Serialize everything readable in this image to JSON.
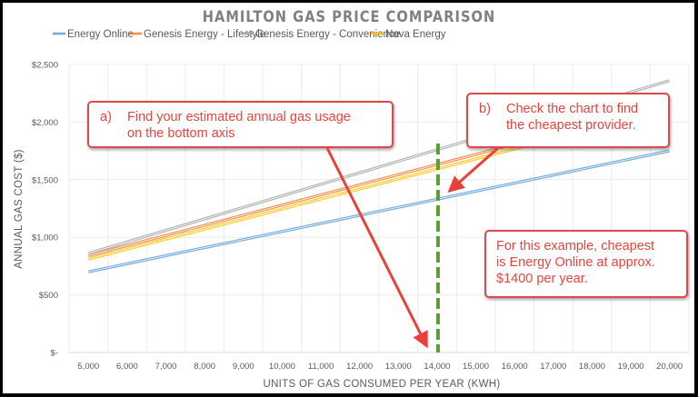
{
  "chart_data": {
    "type": "line",
    "title": "HAMILTON GAS PRICE COMPARISON",
    "xlabel": "UNITS OF GAS CONSUMED PER YEAR (KWH)",
    "ylabel": "ANNUAL GAS COST ($)",
    "categories": [
      "5,000",
      "6,000",
      "7,000",
      "8,000",
      "9,000",
      "10,000",
      "11,000",
      "12,000",
      "13,000",
      "14,000",
      "15,000",
      "16,000",
      "17,000",
      "18,000",
      "19,000",
      "20,000"
    ],
    "x": [
      5000,
      6000,
      7000,
      8000,
      9000,
      10000,
      11000,
      12000,
      13000,
      14000,
      15000,
      16000,
      17000,
      18000,
      19000,
      20000
    ],
    "ylim": [
      0,
      2500
    ],
    "yticks": [
      0,
      500,
      1000,
      1500,
      2000,
      2500
    ],
    "ytick_labels": [
      "$-",
      "$500",
      "$1,000",
      "$1,500",
      "$2,000",
      "$2,500"
    ],
    "grid": true,
    "legend_position": "top",
    "series": [
      {
        "name": "Energy Online",
        "color": "#5b9bd5",
        "values": [
          700,
          770,
          840,
          910,
          980,
          1050,
          1120,
          1190,
          1260,
          1330,
          1400,
          1470,
          1540,
          1610,
          1680,
          1750
        ]
      },
      {
        "name": "Genesis Energy - Lifestyle",
        "color": "#ed7d31",
        "values": [
          840,
          928,
          1016,
          1104,
          1192,
          1280,
          1368,
          1456,
          1544,
          1632,
          1720,
          1808,
          1896,
          1984,
          2072,
          2160
        ]
      },
      {
        "name": "Genesis Energy - Convenience",
        "color": "#a5a5a5",
        "values": [
          860,
          960,
          1060,
          1160,
          1260,
          1360,
          1460,
          1560,
          1660,
          1760,
          1860,
          1960,
          2060,
          2160,
          2260,
          2360
        ]
      },
      {
        "name": "Nova Energy",
        "color": "#ffc000",
        "values": [
          810,
          897,
          984,
          1071,
          1158,
          1245,
          1332,
          1419,
          1506,
          1593,
          1680,
          1767,
          1854,
          1941,
          2028,
          2115
        ]
      }
    ],
    "annotations": {
      "marker_x": 14000,
      "marker_color": "#5a9e2f",
      "arrow_color": "#e8403a"
    }
  },
  "callouts": {
    "a": {
      "label": "a)",
      "line1": "Find your estimated annual gas usage",
      "line2": "on the bottom axis"
    },
    "b": {
      "label": "b)",
      "line1": "Check the chart to find",
      "line2": "the cheapest provider."
    },
    "c": {
      "line1": "For this example, cheapest",
      "line2": "is Energy Online at approx.",
      "line3": "$1400 per year."
    }
  }
}
